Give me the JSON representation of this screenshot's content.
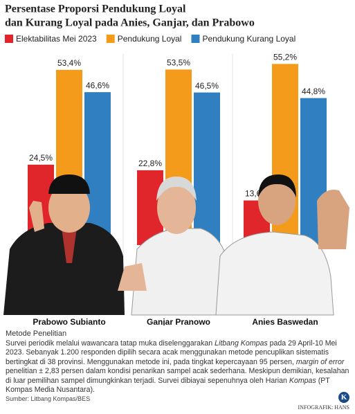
{
  "chart_data": {
    "type": "bar",
    "title": [
      "Persentase Proporsi Pendukung Loyal",
      "dan Kurang Loyal pada Anies, Ganjar, dan Prabowo"
    ],
    "categories": [
      "Prabowo Subianto",
      "Ganjar Pranowo",
      "Anies Baswedan"
    ],
    "series": [
      {
        "name": "Elektabilitas Mei 2023",
        "color": "#e0262b",
        "values": [
          24.5,
          22.8,
          13.6
        ],
        "value_labels": [
          "24,5%",
          "22,8%",
          "13,6%"
        ]
      },
      {
        "name": "Pendukung Loyal",
        "color": "#f59b1c",
        "values": [
          53.4,
          53.5,
          55.2
        ],
        "value_labels": [
          "53,4%",
          "53,5%",
          "55,2%"
        ]
      },
      {
        "name": "Pendukung Kurang Loyal",
        "color": "#2f7fc1",
        "values": [
          46.6,
          46.5,
          44.8
        ],
        "value_labels": [
          "46,6%",
          "46,5%",
          "44,8%"
        ]
      }
    ]
  },
  "method": {
    "title": "Metode Penelitian",
    "text": [
      "Survei periodik melalui wawancara tatap muka diselenggarakan ",
      "Litbang Kompas",
      " pada 29 April-10 Mei 2023. Sebanyak 1.200 responden dipilih secara acak menggunakan metode pencuplikan sistematis bertingkat di 38 provinsi. Menggunakan metode ini, pada tingkat kepercayaan 95 persen, ",
      "margin of error",
      " penelitian ± 2,83 persen dalam kondisi penarikan sampel acak sederhana. Meskipun demikian, kesalahan di luar pemilihan sampel dimungkinkan terjadi. Survei dibiayai sepenuhnya oleh Harian ",
      "Kompas",
      " (PT Kompas Media Nusantara)."
    ]
  },
  "source": "Sumber: Litbang Kompas/BES",
  "logo": "K",
  "credit": "INFOGRAFIK: HANS"
}
